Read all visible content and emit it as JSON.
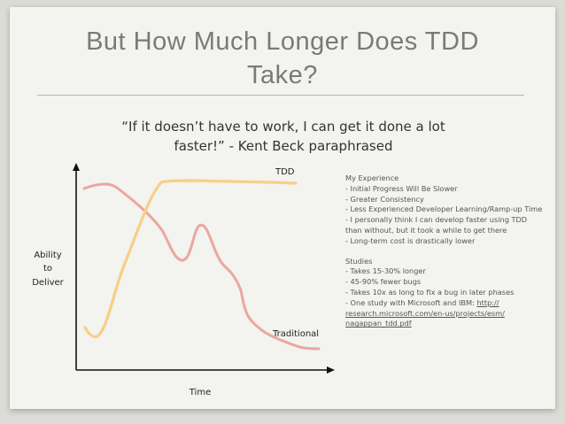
{
  "slide": {
    "title_line1": "But How Much Longer Does TDD",
    "title_line2": "Take?",
    "quote_line1": "“If it doesn’t have to work, I can get it done a lot",
    "quote_line2": "faster!” - Kent Beck paraphrased"
  },
  "chart": {
    "y_label_lines": [
      "Ability",
      "to",
      "Deliver"
    ],
    "x_label": "Time",
    "series": [
      {
        "name": "TDD",
        "color": "#f7cf86"
      },
      {
        "name": "Traditional",
        "color": "#eaa7a0"
      }
    ]
  },
  "notes": {
    "experience_lines": [
      "My Experience",
      "- Initial Progress Will Be Slower",
      "- Greater Consistency",
      "- Less Experienced Developer Learning/Ramp-up Time",
      "- I personally think I can develop faster using TDD",
      "than without, but it took a while to get there",
      "- Long-term cost is drastically lower"
    ],
    "studies_lines": [
      "Studies",
      "- Takes 15-30% longer",
      "- 45-90% fewer bugs",
      "- Takes 10x as long to fix a bug in later phases"
    ],
    "study_link_prefix": "- One study with Microsoft and IBM: ",
    "study_link_part1": "http://",
    "study_link_part2": "research.microsoft.com/en-us/projects/esm/",
    "study_link_part3": "nagappan_tdd.pdf"
  }
}
